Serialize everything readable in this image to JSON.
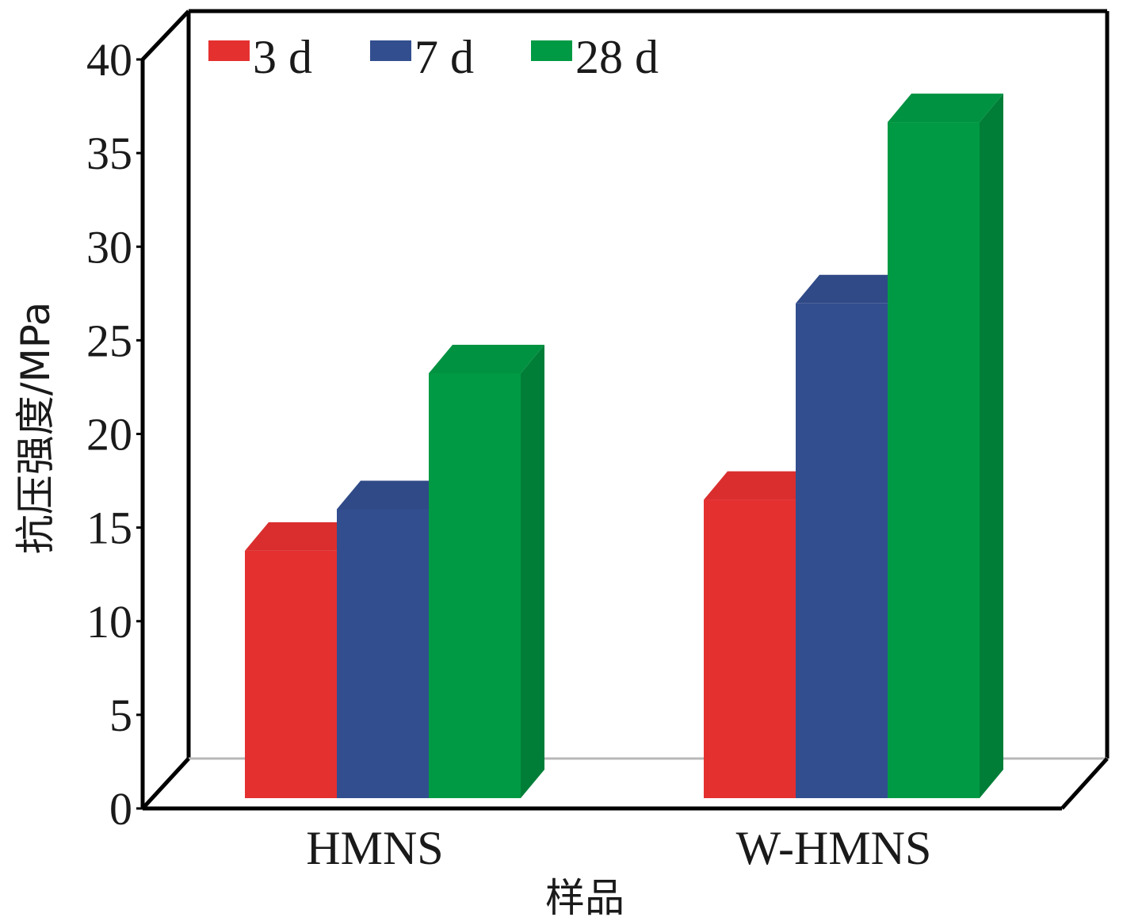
{
  "chart_data": {
    "type": "bar",
    "title": "",
    "xlabel": "样品",
    "ylabel": "抗压强度/MPa",
    "ylim": [
      0,
      40
    ],
    "yticks": [
      "0",
      "5",
      "10",
      "15",
      "20",
      "25",
      "30",
      "35",
      "40"
    ],
    "categories": [
      "HMNS",
      "W-HMNS"
    ],
    "series": [
      {
        "name": "3 d",
        "values": [
          13.1,
          15.8
        ],
        "color": "#e53030"
      },
      {
        "name": "7 d",
        "values": [
          15.3,
          26.2
        ],
        "color": "#324e8f"
      },
      {
        "name": "28 d",
        "values": [
          22.5,
          35.8
        ],
        "color": "#009a44"
      }
    ],
    "legend_position": "top-left",
    "grid": false,
    "style": "3d-bar"
  }
}
